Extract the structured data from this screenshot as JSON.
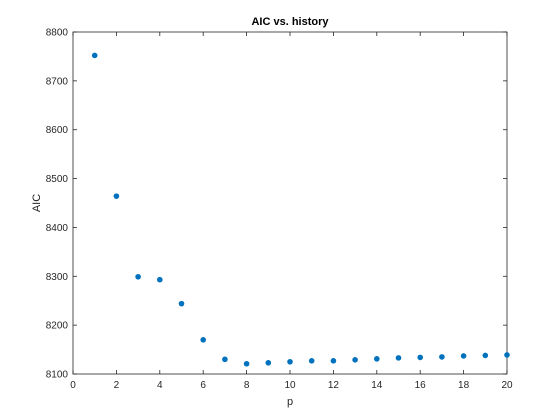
{
  "chart_data": {
    "type": "scatter",
    "title": "AIC vs. history",
    "xlabel": "p",
    "ylabel": "AIC",
    "xlim": [
      0,
      20
    ],
    "ylim": [
      8100,
      8800
    ],
    "xticks": [
      0,
      2,
      4,
      6,
      8,
      10,
      12,
      14,
      16,
      18,
      20
    ],
    "yticks": [
      8100,
      8200,
      8300,
      8400,
      8500,
      8600,
      8700,
      8800
    ],
    "grid": false,
    "marker_color": "#0072BD",
    "series": [
      {
        "x": [
          1,
          2,
          3,
          4,
          5,
          6,
          7,
          8,
          9,
          10,
          11,
          12,
          13,
          14,
          15,
          16,
          17,
          18,
          19,
          20
        ],
        "y": [
          8752,
          8464,
          8299,
          8293,
          8244,
          8170,
          8130,
          8121,
          8123,
          8125,
          8127,
          8127,
          8129,
          8131,
          8133,
          8134,
          8135,
          8137,
          8138,
          8139
        ]
      }
    ]
  }
}
